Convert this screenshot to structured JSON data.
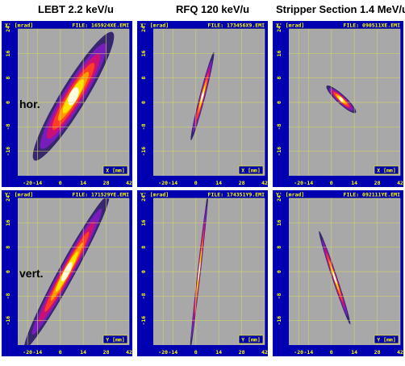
{
  "columns": [
    "LEBT 2.2 keV/u",
    "RFQ 120 keV/u",
    "Stripper Section 1.4 MeV/u"
  ],
  "rows": [
    "hor.",
    "vert."
  ],
  "colors": {
    "plot_bg": "#a8a8a8",
    "frame": "#0000b0",
    "axis_text": "#ffff00",
    "grid": "#d8d860",
    "density": [
      "#30206a",
      "#7a1cc0",
      "#d01070",
      "#ff4020",
      "#ffa000",
      "#ffe800",
      "#fffff0"
    ]
  },
  "chart_data": [
    {
      "type": "heatmap",
      "title": "LEBT 2.2 keV/u",
      "row": "hor.",
      "ylabel": "X' [mrad]",
      "xlabel": "X [mm]",
      "file": "FILE: 165924XE.EMI",
      "xticks": [
        "-20",
        "-14",
        "0",
        "14",
        "28",
        "42"
      ],
      "yticks": [
        "24",
        "16",
        "8",
        "0",
        "-8",
        "-16"
      ],
      "xlim": [
        -26,
        42
      ],
      "ylim": [
        -24,
        24
      ],
      "ellipse": {
        "cx": 8,
        "cy": 2,
        "a": 32,
        "b": 6,
        "angle_deg": 40
      }
    },
    {
      "type": "heatmap",
      "title": "RFQ 120 keV/u",
      "row": "hor.",
      "ylabel": "X' [mrad]",
      "xlabel": "X [mm]",
      "file": "FILE: 173456X9.EMI",
      "xticks": [
        "-20",
        "-14",
        "0",
        "14",
        "28",
        "42"
      ],
      "yticks": [
        "24",
        "16",
        "8",
        "0",
        "-8",
        "-16"
      ],
      "xlim": [
        -26,
        42
      ],
      "ylim": [
        -24,
        24
      ],
      "ellipse": {
        "cx": 4,
        "cy": 2,
        "a": 16,
        "b": 1.6,
        "angle_deg": 64
      }
    },
    {
      "type": "heatmap",
      "title": "Stripper Section 1.4 MeV/u",
      "row": "hor.",
      "ylabel": "X' [mrad]",
      "xlabel": "X [mm]",
      "file": "FILE: 090511XE.EMI",
      "xticks": [
        "-20",
        "-14",
        "0",
        "14",
        "28",
        "42"
      ],
      "yticks": [
        "24",
        "16",
        "8",
        "0",
        "-8",
        "-16"
      ],
      "xlim": [
        -26,
        42
      ],
      "ylim": [
        -24,
        24
      ],
      "ellipse": {
        "cx": 6,
        "cy": 1,
        "a": 10,
        "b": 1.8,
        "angle_deg": -25
      }
    },
    {
      "type": "heatmap",
      "title": "LEBT 2.2 keV/u",
      "row": "vert.",
      "ylabel": "Y' [mrad]",
      "xlabel": "Y [mm]",
      "file": "FILE: 171529YE.EMI",
      "xticks": [
        "-20",
        "-14",
        "0",
        "14",
        "28",
        "42"
      ],
      "yticks": [
        "24",
        "16",
        "8",
        "0",
        "-8",
        "-16"
      ],
      "xlim": [
        -26,
        42
      ],
      "ylim": [
        -24,
        24
      ],
      "ellipse": {
        "cx": 4,
        "cy": 0,
        "a": 36,
        "b": 4,
        "angle_deg": 44
      }
    },
    {
      "type": "heatmap",
      "title": "RFQ 120 keV/u",
      "row": "vert.",
      "ylabel": "Y' [mrad]",
      "xlabel": "Y [mm]",
      "file": "FILE: 174351Y9.EMI",
      "xticks": [
        "-20",
        "-14",
        "0",
        "14",
        "28",
        "42"
      ],
      "yticks": [
        "24",
        "16",
        "8",
        "0",
        "-8",
        "-16"
      ],
      "xlim": [
        -26,
        42
      ],
      "ylim": [
        -24,
        24
      ],
      "ellipse": {
        "cx": 2,
        "cy": 0,
        "a": 27,
        "b": 1,
        "angle_deg": 78
      }
    },
    {
      "type": "heatmap",
      "title": "Stripper Section 1.4 MeV/u",
      "row": "vert.",
      "ylabel": "Y' [mrad]",
      "xlabel": "Y [mm]",
      "file": "FILE: 092111YE.EMI",
      "xticks": [
        "-20",
        "-14",
        "0",
        "14",
        "28",
        "42"
      ],
      "yticks": [
        "24",
        "16",
        "8",
        "0",
        "-8",
        "-16"
      ],
      "xlim": [
        -26,
        42
      ],
      "ylim": [
        -24,
        24
      ],
      "ellipse": {
        "cx": 2,
        "cy": -2,
        "a": 18,
        "b": 1.4,
        "angle_deg": -58
      }
    }
  ]
}
